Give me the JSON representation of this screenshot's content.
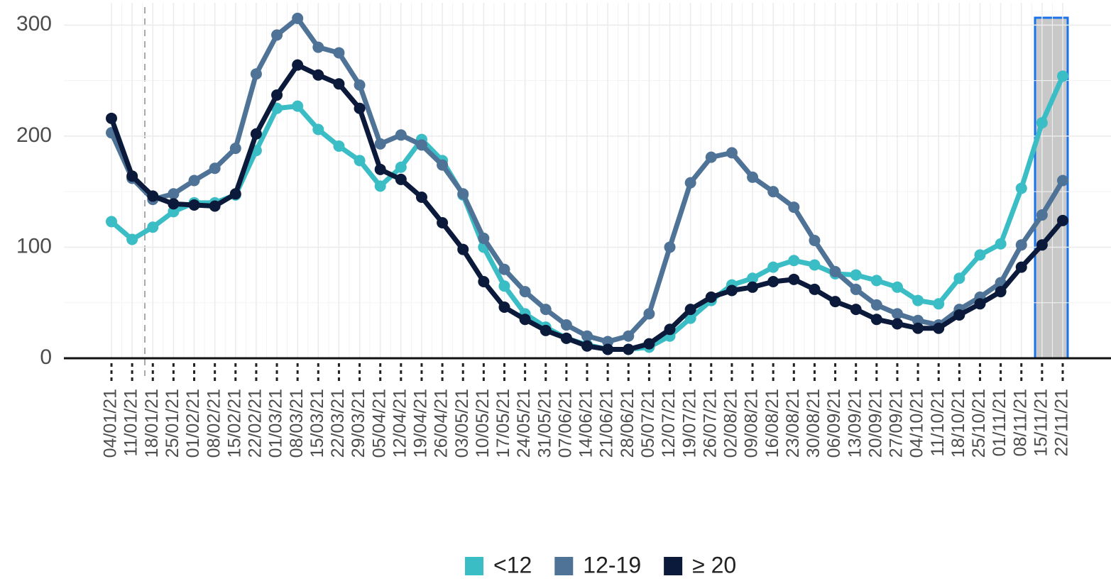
{
  "chart_data": {
    "type": "line",
    "x": [
      "04/01/21",
      "11/01/21",
      "18/01/21",
      "25/01/21",
      "01/02/21",
      "08/02/21",
      "15/02/21",
      "22/02/21",
      "01/03/21",
      "08/03/21",
      "15/03/21",
      "22/03/21",
      "29/03/21",
      "05/04/21",
      "12/04/21",
      "19/04/21",
      "26/04/21",
      "03/05/21",
      "10/05/21",
      "17/05/21",
      "24/05/21",
      "31/05/21",
      "07/06/21",
      "14/06/21",
      "21/06/21",
      "28/06/21",
      "05/07/21",
      "12/07/21",
      "19/07/21",
      "26/07/21",
      "02/08/21",
      "09/08/21",
      "16/08/21",
      "23/08/21",
      "30/08/21",
      "06/09/21",
      "13/09/21",
      "20/09/21",
      "27/09/21",
      "04/10/21",
      "11/10/21",
      "18/10/21",
      "25/10/21",
      "01/11/21",
      "08/11/21",
      "15/11/21",
      "22/11/21"
    ],
    "series": [
      {
        "name": "<12",
        "color": "#3bbdc6",
        "values": [
          123,
          107,
          118,
          132,
          140,
          140,
          147,
          187,
          225,
          227,
          206,
          191,
          178,
          155,
          172,
          197,
          178,
          147,
          100,
          65,
          40,
          28,
          18,
          12,
          8,
          8,
          10,
          20,
          36,
          52,
          66,
          72,
          82,
          88,
          84,
          76,
          75,
          70,
          64,
          52,
          49,
          72,
          93,
          103,
          153,
          212,
          254
        ]
      },
      {
        "name": "12-19",
        "color": "#4f7396",
        "values": [
          203,
          162,
          143,
          148,
          160,
          171,
          189,
          256,
          291,
          306,
          280,
          275,
          246,
          193,
          201,
          192,
          174,
          148,
          108,
          80,
          60,
          44,
          30,
          20,
          15,
          20,
          40,
          100,
          158,
          181,
          185,
          163,
          150,
          136,
          106,
          78,
          62,
          48,
          40,
          34,
          30,
          44,
          55,
          68,
          102,
          129,
          160
        ]
      },
      {
        "name": "≥ 20",
        "color": "#0b1a3a",
        "values": [
          216,
          164,
          146,
          139,
          138,
          137,
          148,
          202,
          237,
          264,
          255,
          247,
          225,
          170,
          161,
          145,
          122,
          98,
          69,
          46,
          35,
          25,
          18,
          11,
          8,
          8,
          13,
          26,
          44,
          55,
          61,
          64,
          69,
          71,
          62,
          51,
          44,
          35,
          31,
          27,
          27,
          39,
          49,
          60,
          82,
          102,
          124
        ]
      }
    ],
    "ylim": [
      0,
      320
    ],
    "yticks": [
      0,
      100,
      200,
      300
    ],
    "grid": true
  }
}
